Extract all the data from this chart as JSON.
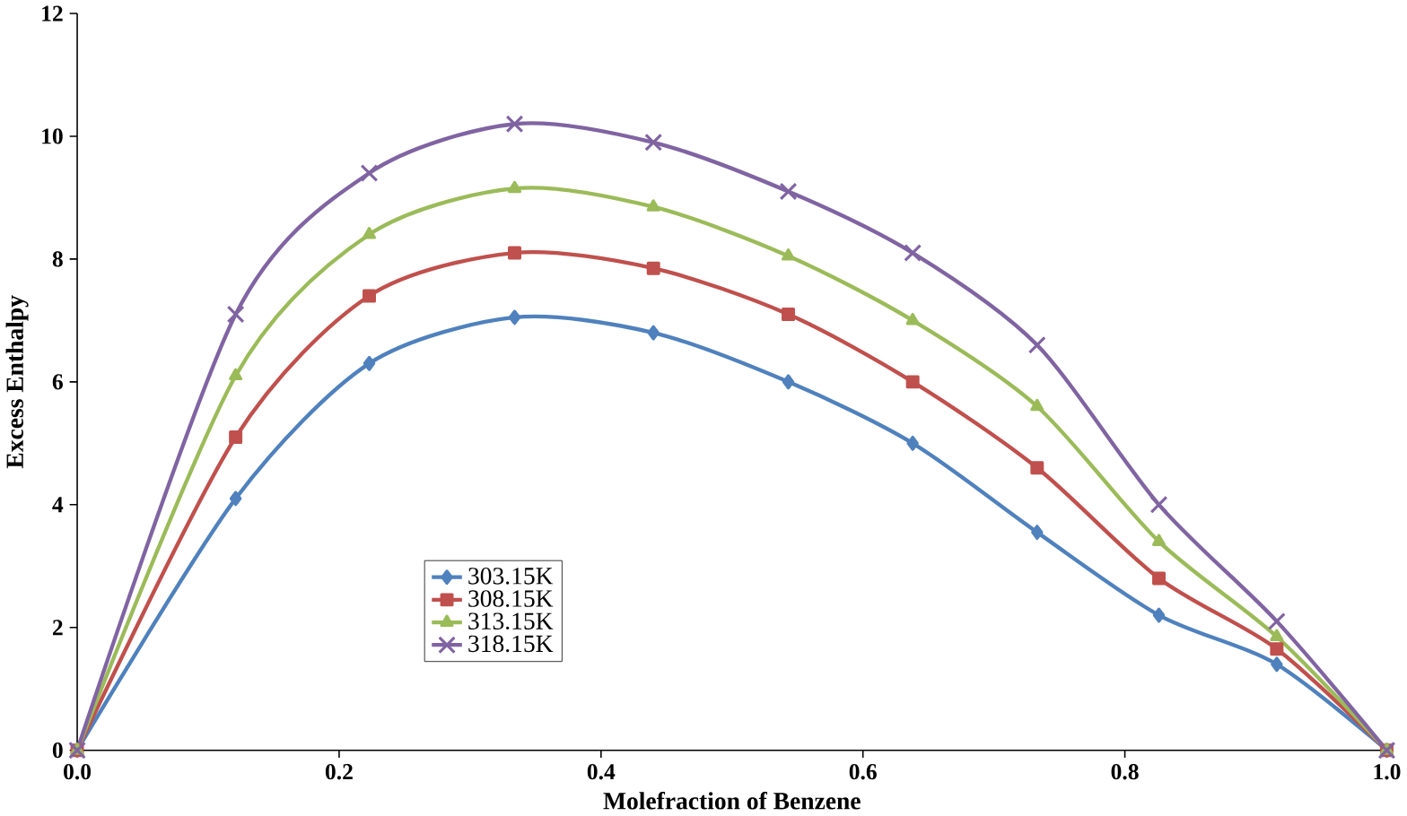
{
  "chart_data": {
    "type": "line",
    "xlabel": "Molefraction  of Benzene",
    "ylabel": "Excess Enthalpy",
    "x": [
      0,
      0.121,
      0.223,
      0.334,
      0.44,
      0.543,
      0.638,
      0.733,
      0.826,
      0.916,
      1.0
    ],
    "xlim": [
      0,
      1.0
    ],
    "xticks": [
      {
        "value": 0,
        "label": "0.0"
      },
      0.2,
      0.4,
      0.6,
      0.8,
      {
        "value": 1.0,
        "label": "1.0"
      }
    ],
    "ylim": [
      0,
      12
    ],
    "yticks": [
      0,
      2,
      4,
      6,
      8,
      10,
      12
    ],
    "grid": false,
    "legend": "bottom left",
    "series": [
      {
        "name": "303.15K",
        "color": "#4f81bd",
        "marker": "diamond",
        "values": [
          0,
          4.1,
          6.3,
          7.05,
          6.8,
          6.0,
          5.0,
          3.55,
          2.2,
          1.4,
          0
        ]
      },
      {
        "name": "308.15K",
        "color": "#c0504d",
        "marker": "square",
        "values": [
          0,
          5.1,
          7.4,
          8.1,
          7.85,
          7.1,
          6.0,
          4.6,
          2.8,
          1.65,
          0
        ]
      },
      {
        "name": "313.15K",
        "color": "#9bbb59",
        "marker": "triangle",
        "values": [
          0,
          6.1,
          8.4,
          9.15,
          8.85,
          8.05,
          7.0,
          5.6,
          3.4,
          1.85,
          0
        ]
      },
      {
        "name": "318.15K",
        "color": "#8064a2",
        "marker": "cross",
        "values": [
          0,
          7.1,
          9.4,
          10.2,
          9.9,
          9.1,
          8.1,
          6.6,
          4.0,
          2.1,
          0
        ]
      }
    ]
  }
}
